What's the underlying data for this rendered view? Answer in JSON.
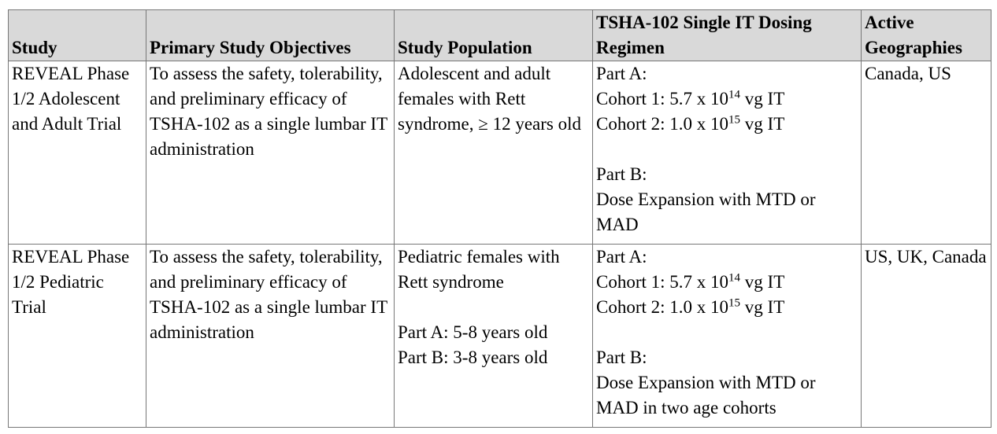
{
  "table": {
    "columns": [
      "Study",
      "Primary Study Objectives",
      "Study Population",
      "TSHA-102 Single IT Dosing Regimen",
      "Active Geographies"
    ],
    "rows": [
      [
        [
          [
            "REVEAL Phase 1/2 Adolescent and Adult Trial"
          ]
        ],
        [
          [
            "To assess the safety, tolerability, and preliminary efficacy of TSHA-102 as a single lumbar IT administration"
          ]
        ],
        [
          [
            "Adolescent and adult females with Rett syndrome, ≥ 12 years old"
          ]
        ],
        [
          [
            "Part A:",
            {
              "text": "Cohort 1: 5.7 x 10",
              "sup": "14",
              "after": " vg IT"
            },
            {
              "text": "Cohort 2: 1.0 x 10",
              "sup": "15",
              "after": " vg IT"
            }
          ],
          [
            "Part B:",
            "Dose Expansion with MTD or MAD"
          ]
        ],
        [
          [
            "Canada, US"
          ]
        ]
      ],
      [
        [
          [
            "REVEAL Phase 1/2 Pediatric Trial"
          ]
        ],
        [
          [
            "To assess the safety, tolerability, and preliminary efficacy of TSHA-102 as a single lumbar IT administration"
          ]
        ],
        [
          [
            "Pediatric females with Rett syndrome"
          ],
          [
            "Part A: 5-8 years old",
            "Part B: 3-8 years old"
          ]
        ],
        [
          [
            "Part A:",
            {
              "text": "Cohort 1: 5.7 x 10",
              "sup": "14",
              "after": " vg IT"
            },
            {
              "text": "Cohort 2: 1.0 x 10",
              "sup": "15",
              "after": " vg IT"
            }
          ],
          [
            "Part B:",
            "Dose Expansion with MTD or MAD in two age cohorts"
          ]
        ],
        [
          [
            "US, UK, Canada"
          ]
        ]
      ]
    ]
  }
}
